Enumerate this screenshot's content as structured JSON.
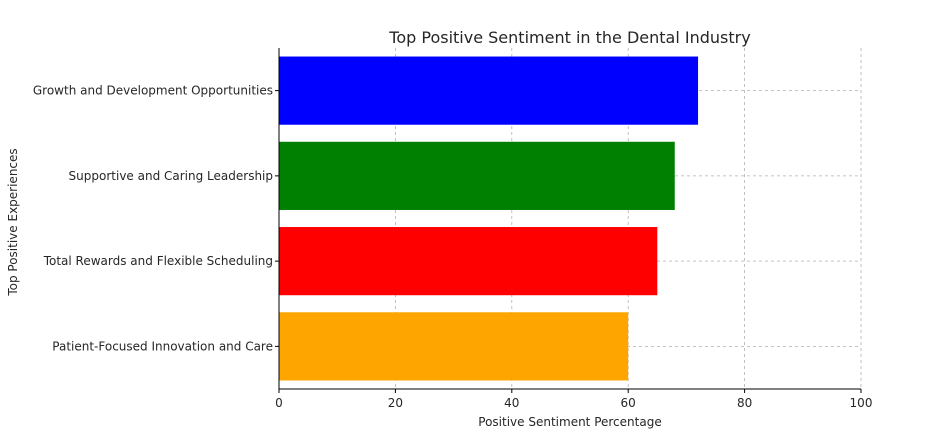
{
  "chart_data": {
    "type": "bar",
    "orientation": "horizontal",
    "title": "Top Positive Sentiment in the Dental Industry",
    "xlabel": "Positive Sentiment Percentage",
    "ylabel": "Top Positive Experiences",
    "xlim": [
      0,
      100
    ],
    "xticks": [
      "0",
      "20",
      "40",
      "60",
      "80",
      "100"
    ],
    "grid": true,
    "categories": [
      "Growth and Development Opportunities",
      "Supportive and Caring Leadership",
      "Total Rewards and Flexible Scheduling",
      "Patient-Focused Innovation and Care"
    ],
    "values": [
      72,
      68,
      65,
      60
    ],
    "colors": [
      "#0000ff",
      "#008000",
      "#ff0000",
      "#ffa500"
    ]
  }
}
